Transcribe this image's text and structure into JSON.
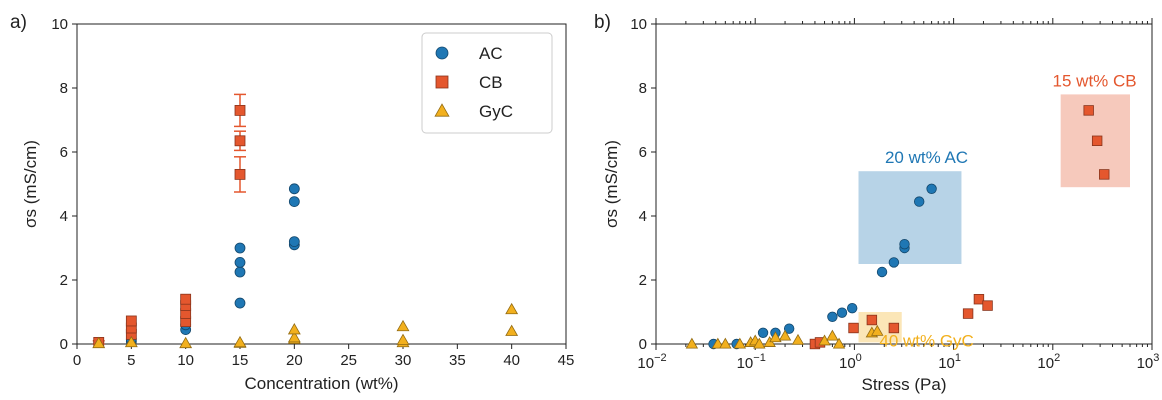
{
  "colors": {
    "AC": "#1f77b4",
    "CB": "#e4572e",
    "GyC": "#f2b01e"
  },
  "chart_data": [
    {
      "panel_label": "a)",
      "type": "scatter",
      "xlabel": "Concentration (wt%)",
      "ylabel": "σs (mS/cm)",
      "xlim": [
        0,
        45
      ],
      "ylim": [
        0,
        10
      ],
      "xticks": [
        "0",
        "5",
        "10",
        "15",
        "20",
        "25",
        "30",
        "35",
        "40",
        "45"
      ],
      "yticks": [
        "0",
        "2",
        "4",
        "6",
        "8",
        "10"
      ],
      "legend_position": "top-right",
      "series": [
        {
          "name": "AC",
          "marker": "circle",
          "points": [
            {
              "x": 2,
              "y": 0.05
            },
            {
              "x": 5,
              "y": 0.08
            },
            {
              "x": 5,
              "y": 0.15
            },
            {
              "x": 10,
              "y": 0.45
            },
            {
              "x": 10,
              "y": 0.6
            },
            {
              "x": 15,
              "y": 1.28
            },
            {
              "x": 15,
              "y": 2.25
            },
            {
              "x": 15,
              "y": 2.55
            },
            {
              "x": 15,
              "y": 3.0
            },
            {
              "x": 20,
              "y": 3.1
            },
            {
              "x": 20,
              "y": 3.2
            },
            {
              "x": 20,
              "y": 4.45
            },
            {
              "x": 20,
              "y": 4.85
            }
          ]
        },
        {
          "name": "CB",
          "marker": "square",
          "points": [
            {
              "x": 2,
              "y": 0.05,
              "err": 0.05
            },
            {
              "x": 5,
              "y": 0.3
            },
            {
              "x": 5,
              "y": 0.5
            },
            {
              "x": 5,
              "y": 0.72
            },
            {
              "x": 10,
              "y": 0.7
            },
            {
              "x": 10,
              "y": 0.95
            },
            {
              "x": 10,
              "y": 1.2
            },
            {
              "x": 10,
              "y": 1.4
            },
            {
              "x": 15,
              "y": 5.3,
              "err": 0.55
            },
            {
              "x": 15,
              "y": 6.35,
              "err": 0.3
            },
            {
              "x": 15,
              "y": 7.3,
              "err": 0.5
            }
          ]
        },
        {
          "name": "GyC",
          "marker": "triangle",
          "points": [
            {
              "x": 2,
              "y": 0.02
            },
            {
              "x": 5,
              "y": 0.05
            },
            {
              "x": 10,
              "y": 0.02
            },
            {
              "x": 15,
              "y": 0.03
            },
            {
              "x": 15,
              "y": 0.05
            },
            {
              "x": 20,
              "y": 0.15
            },
            {
              "x": 20,
              "y": 0.2
            },
            {
              "x": 20,
              "y": 0.45
            },
            {
              "x": 30,
              "y": 0.05
            },
            {
              "x": 30,
              "y": 0.12
            },
            {
              "x": 30,
              "y": 0.55
            },
            {
              "x": 40,
              "y": 0.4
            },
            {
              "x": 40,
              "y": 1.08
            }
          ]
        }
      ]
    },
    {
      "panel_label": "b)",
      "type": "scatter",
      "xlabel": "Stress (Pa)",
      "ylabel": "σs (mS/cm)",
      "xscale": "log",
      "xlim": [
        0.01,
        1000
      ],
      "ylim": [
        0,
        10
      ],
      "xticks": [
        "10",
        "10",
        "10",
        "10",
        "10",
        "10"
      ],
      "xtick_exponents": [
        "−2",
        "−1",
        "0",
        "1",
        "2",
        "3"
      ],
      "yticks": [
        "0",
        "2",
        "4",
        "6",
        "8",
        "10"
      ],
      "annotations": [
        {
          "text": "20 wt% AC",
          "series": "AC",
          "box_x": [
            1.1,
            12
          ],
          "box_y": [
            2.5,
            5.4
          ]
        },
        {
          "text": "15 wt% CB",
          "series": "CB",
          "box_x": [
            120,
            600
          ],
          "box_y": [
            4.9,
            7.8
          ]
        },
        {
          "text": "40 wt% GyC",
          "series": "GyC",
          "box_x": [
            1.1,
            3
          ],
          "box_y": [
            0.05,
            1.0
          ]
        }
      ],
      "series": [
        {
          "name": "AC",
          "marker": "circle",
          "points": [
            {
              "x": 0.038,
              "y": 0.0
            },
            {
              "x": 0.065,
              "y": 0.0
            },
            {
              "x": 0.12,
              "y": 0.35
            },
            {
              "x": 0.16,
              "y": 0.35
            },
            {
              "x": 0.22,
              "y": 0.48
            },
            {
              "x": 0.6,
              "y": 0.85
            },
            {
              "x": 0.75,
              "y": 0.98
            },
            {
              "x": 0.95,
              "y": 1.12
            },
            {
              "x": 1.9,
              "y": 2.25
            },
            {
              "x": 2.5,
              "y": 2.55
            },
            {
              "x": 3.2,
              "y": 3.0
            },
            {
              "x": 3.2,
              "y": 3.12
            },
            {
              "x": 4.5,
              "y": 4.45
            },
            {
              "x": 6.0,
              "y": 4.85
            }
          ]
        },
        {
          "name": "CB",
          "marker": "square",
          "points": [
            {
              "x": 0.4,
              "y": 0.0
            },
            {
              "x": 0.45,
              "y": 0.05
            },
            {
              "x": 0.98,
              "y": 0.5
            },
            {
              "x": 1.5,
              "y": 0.75
            },
            {
              "x": 2.5,
              "y": 0.5
            },
            {
              "x": 14,
              "y": 0.95
            },
            {
              "x": 18,
              "y": 1.4
            },
            {
              "x": 22,
              "y": 1.2
            },
            {
              "x": 230,
              "y": 7.3
            },
            {
              "x": 280,
              "y": 6.35
            },
            {
              "x": 330,
              "y": 5.3
            }
          ]
        },
        {
          "name": "GyC",
          "marker": "triangle",
          "points": [
            {
              "x": 0.023,
              "y": 0.0
            },
            {
              "x": 0.042,
              "y": 0.0
            },
            {
              "x": 0.05,
              "y": 0.0
            },
            {
              "x": 0.07,
              "y": 0.0
            },
            {
              "x": 0.09,
              "y": 0.05
            },
            {
              "x": 0.1,
              "y": 0.1
            },
            {
              "x": 0.11,
              "y": 0.0
            },
            {
              "x": 0.14,
              "y": 0.05
            },
            {
              "x": 0.16,
              "y": 0.2
            },
            {
              "x": 0.2,
              "y": 0.25
            },
            {
              "x": 0.27,
              "y": 0.12
            },
            {
              "x": 0.5,
              "y": 0.1
            },
            {
              "x": 0.6,
              "y": 0.25
            },
            {
              "x": 0.7,
              "y": 0.0
            },
            {
              "x": 1.5,
              "y": 0.35
            },
            {
              "x": 1.7,
              "y": 0.4
            }
          ]
        }
      ]
    }
  ]
}
